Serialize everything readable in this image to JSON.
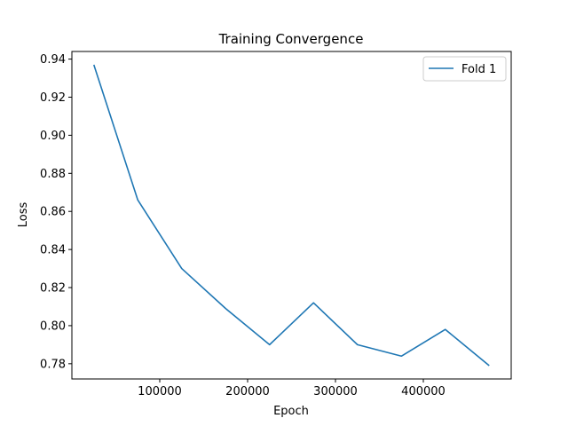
{
  "chart_data": {
    "type": "line",
    "title": "Training Convergence",
    "xlabel": "Epoch",
    "ylabel": "Loss",
    "xlim": [
      0,
      500000
    ],
    "ylim": [
      0.772,
      0.944
    ],
    "xticks": [
      100000,
      200000,
      300000,
      400000
    ],
    "xtick_labels": [
      "100000",
      "200000",
      "300000",
      "400000"
    ],
    "yticks": [
      0.78,
      0.8,
      0.82,
      0.84,
      0.86,
      0.88,
      0.9,
      0.92,
      0.94
    ],
    "ytick_labels": [
      "0.78",
      "0.80",
      "0.82",
      "0.84",
      "0.86",
      "0.88",
      "0.90",
      "0.92",
      "0.94"
    ],
    "grid": false,
    "legend": "top-right",
    "series": [
      {
        "name": "Fold 1",
        "color": "#1f77b4",
        "x": [
          25000,
          75000,
          125000,
          175000,
          225000,
          275000,
          325000,
          375000,
          425000,
          475000
        ],
        "y": [
          0.937,
          0.866,
          0.83,
          0.809,
          0.79,
          0.812,
          0.79,
          0.784,
          0.798,
          0.779
        ]
      }
    ]
  }
}
